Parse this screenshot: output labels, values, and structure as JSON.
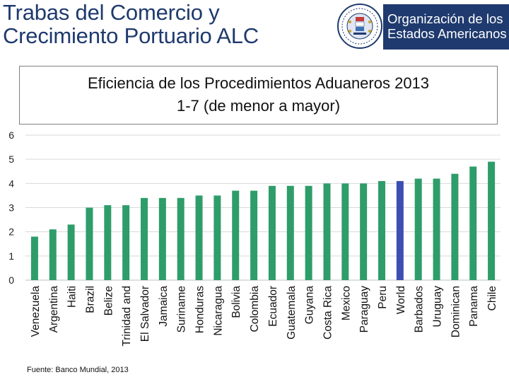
{
  "slide": {
    "title_line1": "Trabas del Comercio y",
    "title_line2": "Crecimiento Portuario ALC",
    "logo_line1": "Organización de los",
    "logo_line2": "Estados Americanos",
    "source": "Fuente: Banco Mundial, 2013"
  },
  "colors": {
    "title": "#1f3a6e",
    "banner": "#1f3a6e",
    "bar": "#2e9d6a",
    "highlight_bar": "#3d4eb3",
    "grid": "#d9d9d9"
  },
  "chart_data": {
    "type": "bar",
    "title": "Eficiencia de los Procedimientos Aduaneros 2013",
    "subtitle": "1-7 (de menor a mayor)",
    "xlabel": "",
    "ylabel": "",
    "ylim": [
      0,
      6
    ],
    "yticks": [
      0,
      1,
      2,
      3,
      4,
      5,
      6
    ],
    "grid": true,
    "legend": "none",
    "highlight_category": "World",
    "categories": [
      "Venezuela",
      "Argentina",
      "Haiti",
      "Brazil",
      "Belize",
      "Trinidad and",
      "El Salvador",
      "Jamaica",
      "Suriname",
      "Honduras",
      "Nicaragua",
      "Bolivia",
      "Colombia",
      "Ecuador",
      "Guatemala",
      "Guyana",
      "Costa Rica",
      "Mexico",
      "Paraguay",
      "Peru",
      "World",
      "Barbados",
      "Uruguay",
      "Dominican",
      "Panama",
      "Chile"
    ],
    "values": [
      1.8,
      2.1,
      2.3,
      3.0,
      3.1,
      3.1,
      3.4,
      3.4,
      3.4,
      3.5,
      3.5,
      3.7,
      3.7,
      3.9,
      3.9,
      3.9,
      4.0,
      4.0,
      4.0,
      4.1,
      4.1,
      4.2,
      4.2,
      4.4,
      4.7,
      4.9
    ]
  }
}
